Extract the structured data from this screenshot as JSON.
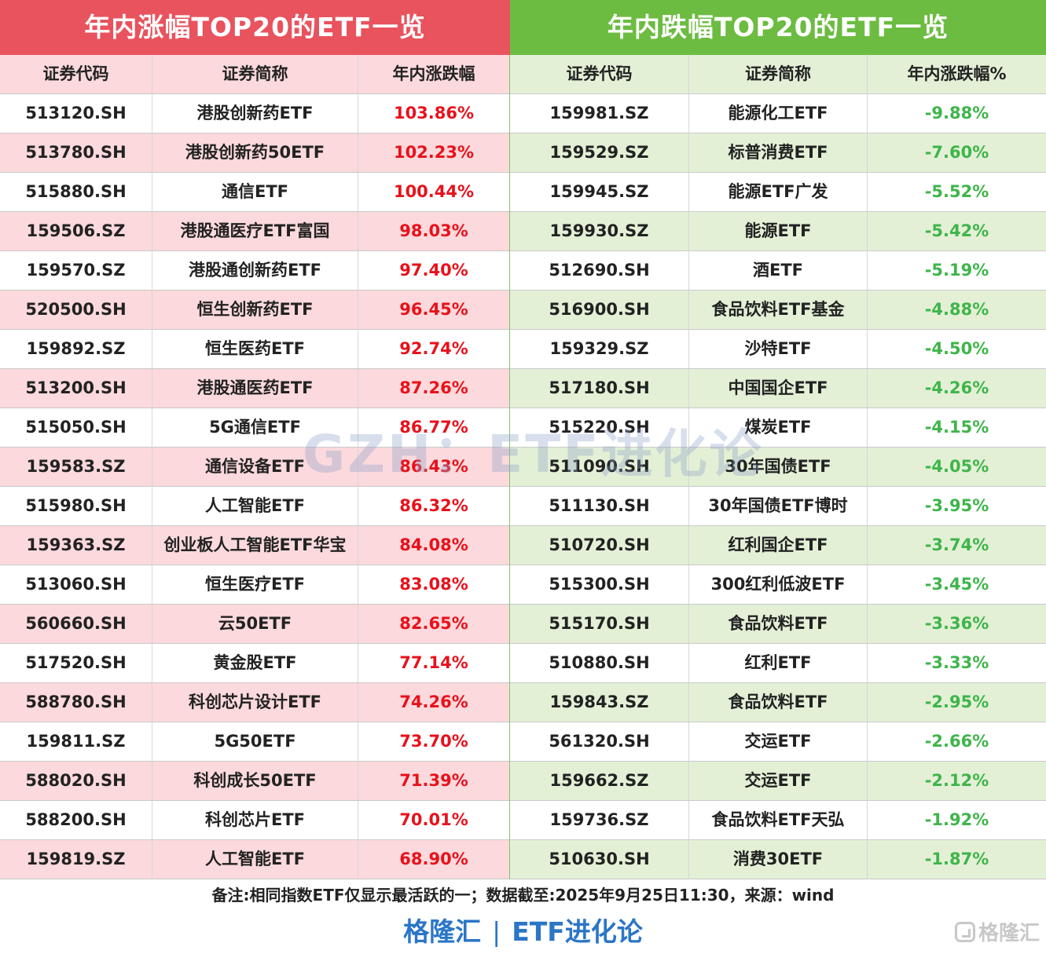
{
  "left": {
    "title": "年内涨幅TOP20的ETF一览",
    "headers": [
      "证券代码",
      "证券简称",
      "年内涨跌幅"
    ],
    "rows": [
      [
        "513120.SH",
        "港股创新药ETF",
        "103.86%"
      ],
      [
        "513780.SH",
        "港股创新药50ETF",
        "102.23%"
      ],
      [
        "515880.SH",
        "通信ETF",
        "100.44%"
      ],
      [
        "159506.SZ",
        "港股通医疗ETF富国",
        "98.03%"
      ],
      [
        "159570.SZ",
        "港股通创新药ETF",
        "97.40%"
      ],
      [
        "520500.SH",
        "恒生创新药ETF",
        "96.45%"
      ],
      [
        "159892.SZ",
        "恒生医药ETF",
        "92.74%"
      ],
      [
        "513200.SH",
        "港股通医药ETF",
        "87.26%"
      ],
      [
        "515050.SH",
        "5G通信ETF",
        "86.77%"
      ],
      [
        "159583.SZ",
        "通信设备ETF",
        "86.43%"
      ],
      [
        "515980.SH",
        "人工智能ETF",
        "86.32%"
      ],
      [
        "159363.SZ",
        "创业板人工智能ETF华宝",
        "84.08%"
      ],
      [
        "513060.SH",
        "恒生医疗ETF",
        "83.08%"
      ],
      [
        "560660.SH",
        "云50ETF",
        "82.65%"
      ],
      [
        "517520.SH",
        "黄金股ETF",
        "77.14%"
      ],
      [
        "588780.SH",
        "科创芯片设计ETF",
        "74.26%"
      ],
      [
        "159811.SZ",
        "5G50ETF",
        "73.70%"
      ],
      [
        "588020.SH",
        "科创成长50ETF",
        "71.39%"
      ],
      [
        "588200.SH",
        "科创芯片ETF",
        "70.01%"
      ],
      [
        "159819.SZ",
        "人工智能ETF",
        "68.90%"
      ]
    ]
  },
  "right": {
    "title": "年内跌幅TOP20的ETF一览",
    "headers": [
      "证券代码",
      "证券简称",
      "年内涨跌幅%"
    ],
    "rows": [
      [
        "159981.SZ",
        "能源化工ETF",
        "-9.88%"
      ],
      [
        "159529.SZ",
        "标普消费ETF",
        "-7.60%"
      ],
      [
        "159945.SZ",
        "能源ETF广发",
        "-5.52%"
      ],
      [
        "159930.SZ",
        "能源ETF",
        "-5.42%"
      ],
      [
        "512690.SH",
        "酒ETF",
        "-5.19%"
      ],
      [
        "516900.SH",
        "食品饮料ETF基金",
        "-4.88%"
      ],
      [
        "159329.SZ",
        "沙特ETF",
        "-4.50%"
      ],
      [
        "517180.SH",
        "中国国企ETF",
        "-4.26%"
      ],
      [
        "515220.SH",
        "煤炭ETF",
        "-4.15%"
      ],
      [
        "511090.SH",
        "30年国债ETF",
        "-4.05%"
      ],
      [
        "511130.SH",
        "30年国债ETF博时",
        "-3.95%"
      ],
      [
        "510720.SH",
        "红利国企ETF",
        "-3.74%"
      ],
      [
        "515300.SH",
        "300红利低波ETF",
        "-3.45%"
      ],
      [
        "515170.SH",
        "食品饮料ETF",
        "-3.36%"
      ],
      [
        "510880.SH",
        "红利ETF",
        "-3.33%"
      ],
      [
        "159843.SZ",
        "食品饮料ETF",
        "-2.95%"
      ],
      [
        "561320.SH",
        "交运ETF",
        "-2.66%"
      ],
      [
        "159662.SZ",
        "交运ETF",
        "-2.12%"
      ],
      [
        "159736.SZ",
        "食品饮料ETF天弘",
        "-1.92%"
      ],
      [
        "510630.SH",
        "消费30ETF",
        "-1.87%"
      ]
    ]
  },
  "watermark": "GZH：ETF进化论",
  "note": "备注:相同指数ETF仅显示最活跃的一；数据截至:2025年9月25日11:30，来源：wind",
  "footer": {
    "left": "格隆汇",
    "separator": "|",
    "right": "ETF进化论"
  },
  "logo": {
    "icon": "gelonghui-logo-icon",
    "text": "格隆汇"
  },
  "colors": {
    "left_title": "#e8535e",
    "right_title": "#6cbc41",
    "up": "#e8111b",
    "down": "#3eb54a",
    "footer": "#2b76c6"
  }
}
